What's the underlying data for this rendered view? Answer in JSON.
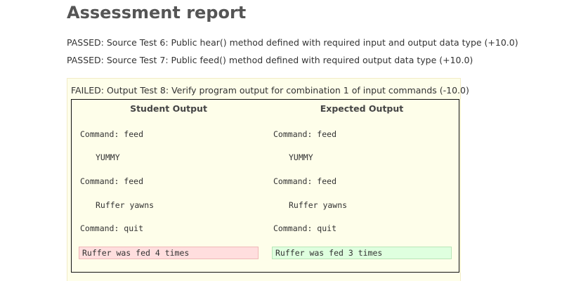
{
  "page": {
    "title": "Assessment report"
  },
  "results": [
    "PASSED: Source Test 6: Public hear() method defined with required input and output data type (+10.0)",
    "PASSED: Source Test 7: Public feed() method defined with required output data type (+10.0)"
  ],
  "failed_test": {
    "title": "FAILED: Output Test 8: Verify program output for combination 1 of input commands (-10.0)",
    "student": {
      "header": "Student Output",
      "lines": [
        "Command: feed",
        "YUMMY",
        "Command: feed",
        "Ruffer yawns",
        "Command: quit"
      ],
      "result": "Ruffer was fed 4 times"
    },
    "expected": {
      "header": "Expected Output",
      "lines": [
        "Command: feed",
        "YUMMY",
        "Command: feed",
        "Ruffer yawns",
        "Command: quit"
      ],
      "result": "Ruffer was fed 3 times"
    }
  },
  "colors": {
    "failed_box_bg": "#fefeea",
    "mismatch_bg": "#ffdede",
    "match_bg": "#dfffdf"
  }
}
